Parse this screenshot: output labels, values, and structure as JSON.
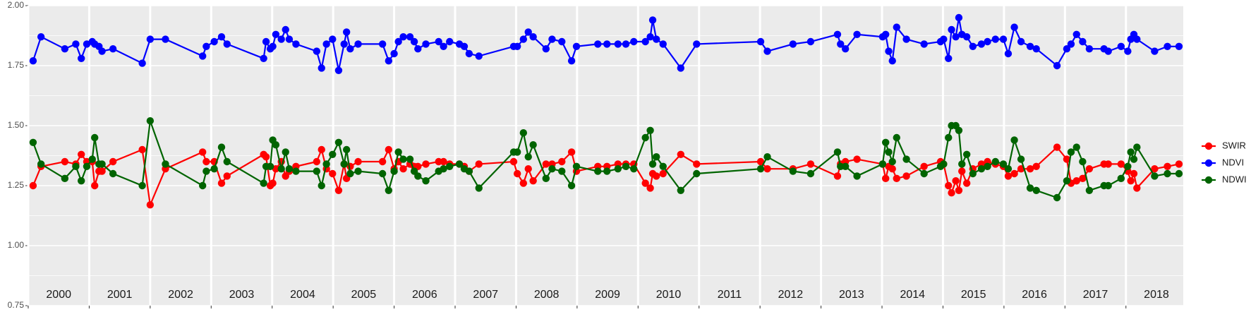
{
  "chart_data": {
    "type": "line",
    "x": [
      2000.08,
      2000.21,
      2000.6,
      2000.78,
      2000.87,
      2000.96,
      2001.05,
      2001.09,
      2001.16,
      2001.21,
      2001.39,
      2001.87,
      2002.0,
      2002.25,
      2002.86,
      2002.92,
      2003.05,
      2003.17,
      2003.26,
      2003.86,
      2003.9,
      2003.97,
      2004.01,
      2004.06,
      2004.15,
      2004.22,
      2004.28,
      2004.39,
      2004.73,
      2004.81,
      2004.89,
      2004.99,
      2005.09,
      2005.18,
      2005.22,
      2005.28,
      2005.41,
      2005.81,
      2005.91,
      2006.0,
      2006.07,
      2006.15,
      2006.26,
      2006.33,
      2006.39,
      2006.52,
      2006.73,
      2006.81,
      2006.91,
      2007.07,
      2007.15,
      2007.23,
      2007.39,
      2007.96,
      2008.02,
      2008.12,
      2008.2,
      2008.28,
      2008.49,
      2008.59,
      2008.75,
      2008.91,
      2008.99,
      2009.34,
      2009.49,
      2009.67,
      2009.8,
      2009.93,
      2010.12,
      2010.2,
      2010.24,
      2010.3,
      2010.41,
      2010.7,
      2010.96,
      2012.01,
      2012.12,
      2012.54,
      2012.83,
      2013.27,
      2013.32,
      2013.4,
      2013.59,
      2014.01,
      2014.06,
      2014.11,
      2014.17,
      2014.24,
      2014.4,
      2014.69,
      2014.96,
      2015.01,
      2015.09,
      2015.14,
      2015.21,
      2015.26,
      2015.31,
      2015.39,
      2015.49,
      2015.63,
      2015.73,
      2015.86,
      2015.99,
      2016.07,
      2016.17,
      2016.28,
      2016.43,
      2016.53,
      2016.87,
      2017.03,
      2017.1,
      2017.19,
      2017.29,
      2017.4,
      2017.64,
      2017.71,
      2017.92,
      2018.03,
      2018.08,
      2018.13,
      2018.18,
      2018.47,
      2018.68,
      2018.87
    ],
    "series": [
      {
        "name": "SWIR",
        "color": "#ff0000",
        "values": [
          1.25,
          1.33,
          1.35,
          1.34,
          1.38,
          1.35,
          1.35,
          1.25,
          1.31,
          1.31,
          1.35,
          1.4,
          1.17,
          1.32,
          1.39,
          1.35,
          1.35,
          1.26,
          1.29,
          1.38,
          1.37,
          1.25,
          1.26,
          1.32,
          1.35,
          1.29,
          1.31,
          1.33,
          1.35,
          1.4,
          1.32,
          1.3,
          1.23,
          1.34,
          1.28,
          1.33,
          1.35,
          1.35,
          1.4,
          1.32,
          1.35,
          1.32,
          1.34,
          1.33,
          1.33,
          1.34,
          1.35,
          1.35,
          1.34,
          1.34,
          1.33,
          1.31,
          1.34,
          1.35,
          1.3,
          1.26,
          1.32,
          1.27,
          1.34,
          1.34,
          1.35,
          1.39,
          1.31,
          1.33,
          1.33,
          1.34,
          1.34,
          1.34,
          1.26,
          1.24,
          1.3,
          1.29,
          1.3,
          1.38,
          1.34,
          1.35,
          1.32,
          1.32,
          1.34,
          1.29,
          1.34,
          1.35,
          1.36,
          1.34,
          1.28,
          1.33,
          1.32,
          1.28,
          1.29,
          1.33,
          1.35,
          1.34,
          1.25,
          1.22,
          1.27,
          1.23,
          1.31,
          1.26,
          1.32,
          1.34,
          1.35,
          1.34,
          1.33,
          1.29,
          1.3,
          1.32,
          1.32,
          1.33,
          1.41,
          1.36,
          1.26,
          1.27,
          1.28,
          1.32,
          1.34,
          1.34,
          1.34,
          1.31,
          1.27,
          1.3,
          1.24,
          1.32,
          1.33,
          1.34
        ]
      },
      {
        "name": "NDVI",
        "color": "#0000ff",
        "values": [
          1.77,
          1.87,
          1.82,
          1.84,
          1.78,
          1.84,
          1.85,
          1.84,
          1.83,
          1.81,
          1.82,
          1.76,
          1.86,
          1.86,
          1.79,
          1.83,
          1.85,
          1.87,
          1.84,
          1.78,
          1.85,
          1.82,
          1.83,
          1.88,
          1.86,
          1.9,
          1.86,
          1.84,
          1.81,
          1.74,
          1.84,
          1.86,
          1.73,
          1.84,
          1.89,
          1.82,
          1.84,
          1.84,
          1.77,
          1.8,
          1.85,
          1.87,
          1.87,
          1.85,
          1.82,
          1.84,
          1.85,
          1.83,
          1.85,
          1.84,
          1.83,
          1.8,
          1.79,
          1.83,
          1.83,
          1.86,
          1.89,
          1.87,
          1.82,
          1.86,
          1.85,
          1.77,
          1.83,
          1.84,
          1.84,
          1.84,
          1.84,
          1.85,
          1.85,
          1.87,
          1.94,
          1.86,
          1.84,
          1.74,
          1.84,
          1.85,
          1.81,
          1.84,
          1.85,
          1.88,
          1.84,
          1.82,
          1.88,
          1.87,
          1.88,
          1.81,
          1.77,
          1.91,
          1.86,
          1.84,
          1.85,
          1.86,
          1.78,
          1.9,
          1.87,
          1.95,
          1.88,
          1.87,
          1.83,
          1.84,
          1.85,
          1.86,
          1.86,
          1.8,
          1.91,
          1.85,
          1.83,
          1.82,
          1.75,
          1.82,
          1.84,
          1.88,
          1.85,
          1.82,
          1.82,
          1.81,
          1.83,
          1.81,
          1.86,
          1.88,
          1.86,
          1.81,
          1.83,
          1.83
        ]
      },
      {
        "name": "NDWI",
        "color": "#006400",
        "values": [
          1.43,
          1.34,
          1.28,
          1.33,
          1.27,
          1.33,
          1.36,
          1.45,
          1.34,
          1.34,
          1.3,
          1.25,
          1.52,
          1.34,
          1.25,
          1.31,
          1.32,
          1.41,
          1.35,
          1.26,
          1.33,
          1.33,
          1.44,
          1.42,
          1.32,
          1.39,
          1.32,
          1.31,
          1.31,
          1.25,
          1.34,
          1.38,
          1.43,
          1.34,
          1.4,
          1.3,
          1.31,
          1.3,
          1.23,
          1.31,
          1.39,
          1.36,
          1.36,
          1.31,
          1.29,
          1.27,
          1.31,
          1.32,
          1.33,
          1.34,
          1.32,
          1.31,
          1.24,
          1.39,
          1.39,
          1.47,
          1.37,
          1.42,
          1.28,
          1.32,
          1.31,
          1.25,
          1.33,
          1.31,
          1.31,
          1.32,
          1.33,
          1.32,
          1.45,
          1.48,
          1.34,
          1.37,
          1.33,
          1.23,
          1.3,
          1.32,
          1.37,
          1.31,
          1.3,
          1.39,
          1.33,
          1.33,
          1.29,
          1.34,
          1.43,
          1.39,
          1.35,
          1.45,
          1.36,
          1.3,
          1.33,
          1.34,
          1.45,
          1.5,
          1.5,
          1.48,
          1.34,
          1.38,
          1.3,
          1.32,
          1.33,
          1.35,
          1.34,
          1.32,
          1.44,
          1.36,
          1.24,
          1.23,
          1.2,
          1.27,
          1.39,
          1.41,
          1.35,
          1.23,
          1.25,
          1.25,
          1.28,
          1.33,
          1.39,
          1.36,
          1.41,
          1.29,
          1.3,
          1.3
        ]
      }
    ],
    "xlim": [
      2000.0,
      2018.94
    ],
    "xticks": [
      2000,
      2001,
      2002,
      2003,
      2004,
      2005,
      2006,
      2007,
      2008,
      2009,
      2010,
      2011,
      2012,
      2013,
      2014,
      2015,
      2016,
      2017,
      2018
    ],
    "ylim": [
      0.75,
      2.0
    ],
    "yticks": [
      0.75,
      {
        "value": 1.0,
        "label": "1.00"
      },
      1.25,
      {
        "value": 1.5,
        "label": "1.50"
      },
      1.75,
      {
        "value": 2.0,
        "label": "2.00"
      }
    ],
    "grid": true,
    "legend": "right"
  }
}
